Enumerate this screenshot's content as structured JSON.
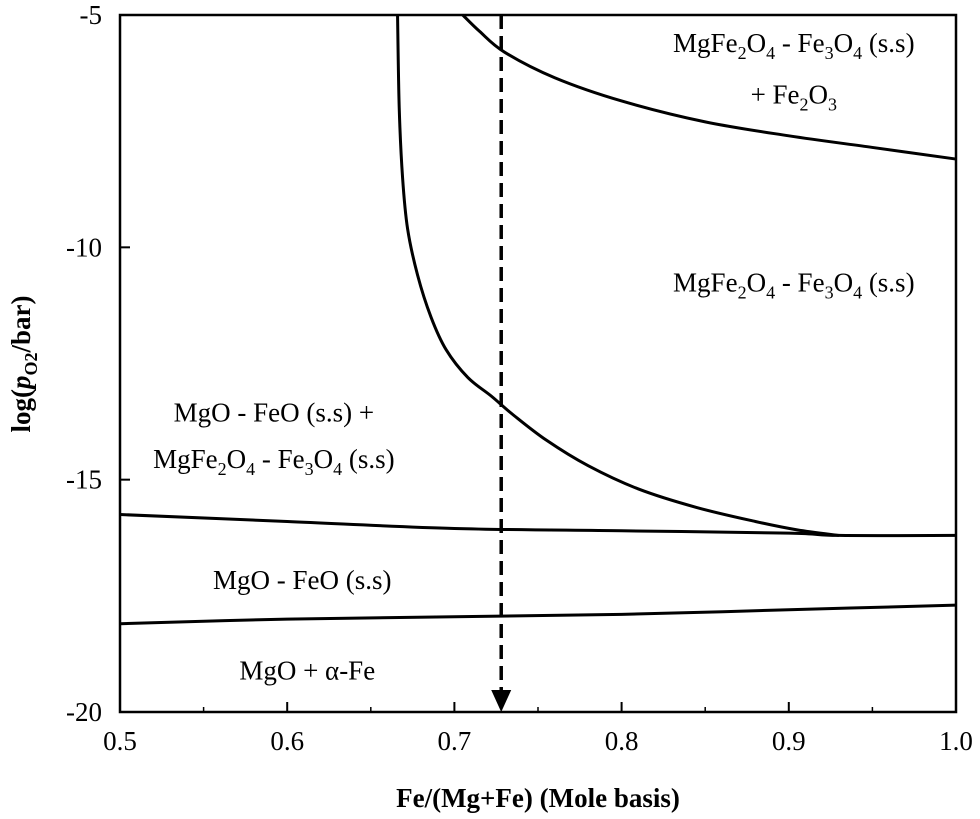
{
  "chart_data": {
    "type": "line",
    "title": "",
    "xlabel": "Fe/(Mg+Fe) (Mole basis)",
    "ylabel": {
      "prefix": "log(",
      "italic": "p",
      "subscript": "O2",
      "suffix": "/bar)"
    },
    "xlim": [
      0.5,
      1.0
    ],
    "ylim": [
      -20,
      -5
    ],
    "x_ticks": [
      0.5,
      0.6,
      0.7,
      0.8,
      0.9,
      1.0
    ],
    "x_tick_labels": [
      "0.5",
      "0.6",
      "0.7",
      "0.8",
      "0.9",
      "1.0"
    ],
    "y_ticks": [
      -20,
      -15,
      -10,
      -5
    ],
    "y_tick_labels": [
      "-20",
      "-15",
      "-10",
      "-5"
    ],
    "grid": false,
    "legend": "none",
    "series": [
      {
        "points": [
          [
            0.5,
            -18.1
          ],
          [
            0.6,
            -18.0
          ],
          [
            0.7,
            -17.95
          ],
          [
            0.8,
            -17.9
          ],
          [
            0.9,
            -17.8
          ],
          [
            1.0,
            -17.7
          ]
        ]
      },
      {
        "points": [
          [
            0.5,
            -15.75
          ],
          [
            0.6,
            -15.9
          ],
          [
            0.7,
            -16.05
          ],
          [
            0.8,
            -16.1
          ],
          [
            0.9,
            -16.15
          ],
          [
            0.93,
            -16.2
          ],
          [
            1.0,
            -16.2
          ]
        ]
      },
      {
        "points": [
          [
            0.666,
            -5.0
          ],
          [
            0.667,
            -7.0
          ],
          [
            0.669,
            -8.5
          ],
          [
            0.672,
            -9.6
          ],
          [
            0.678,
            -10.6
          ],
          [
            0.686,
            -11.5
          ],
          [
            0.695,
            -12.2
          ],
          [
            0.708,
            -12.8
          ],
          [
            0.722,
            -13.2
          ],
          [
            0.735,
            -13.6
          ],
          [
            0.755,
            -14.15
          ],
          [
            0.78,
            -14.7
          ],
          [
            0.81,
            -15.2
          ],
          [
            0.845,
            -15.6
          ],
          [
            0.88,
            -15.9
          ],
          [
            0.905,
            -16.08
          ],
          [
            0.93,
            -16.2
          ]
        ]
      },
      {
        "points": [
          [
            0.705,
            -5.0
          ],
          [
            0.715,
            -5.35
          ],
          [
            0.73,
            -5.8
          ],
          [
            0.76,
            -6.35
          ],
          [
            0.8,
            -6.85
          ],
          [
            0.85,
            -7.3
          ],
          [
            0.9,
            -7.6
          ],
          [
            0.95,
            -7.85
          ],
          [
            1.0,
            -8.1
          ]
        ]
      }
    ],
    "marker": {
      "x": 0.728,
      "y_from": -5,
      "y_to": -20,
      "style": "dashed-arrow"
    },
    "annotations": [
      {
        "id": "a1",
        "x": 0.903,
        "y": -5.8,
        "parts": [
          [
            "MgFe",
            ""
          ],
          [
            "2",
            "sub"
          ],
          [
            "O",
            ""
          ],
          [
            "4",
            "sub"
          ],
          [
            " - Fe",
            ""
          ],
          [
            "3",
            "sub"
          ],
          [
            "O",
            ""
          ],
          [
            "4",
            "sub"
          ],
          [
            " (s.s)",
            ""
          ]
        ]
      },
      {
        "id": "a2",
        "x": 0.903,
        "y": -6.9,
        "parts": [
          [
            "+ Fe",
            ""
          ],
          [
            "2",
            "sub"
          ],
          [
            "O",
            ""
          ],
          [
            "3",
            "sub"
          ]
        ]
      },
      {
        "id": "a3",
        "x": 0.903,
        "y": -10.95,
        "parts": [
          [
            "MgFe",
            ""
          ],
          [
            "2",
            "sub"
          ],
          [
            "O",
            ""
          ],
          [
            "4",
            "sub"
          ],
          [
            " - Fe",
            ""
          ],
          [
            "3",
            "sub"
          ],
          [
            "O",
            ""
          ],
          [
            "4",
            "sub"
          ],
          [
            " (s.s)",
            ""
          ]
        ]
      },
      {
        "id": "a4",
        "x": 0.592,
        "y": -13.75,
        "parts": [
          [
            "MgO - FeO (s.s) +",
            ""
          ]
        ]
      },
      {
        "id": "a5",
        "x": 0.592,
        "y": -14.75,
        "parts": [
          [
            "MgFe",
            ""
          ],
          [
            "2",
            "sub"
          ],
          [
            "O",
            ""
          ],
          [
            "4",
            "sub"
          ],
          [
            " - Fe",
            ""
          ],
          [
            "3",
            "sub"
          ],
          [
            "O",
            ""
          ],
          [
            "4",
            "sub"
          ],
          [
            " (s.s)",
            ""
          ]
        ]
      },
      {
        "id": "a6",
        "x": 0.609,
        "y": -17.35,
        "parts": [
          [
            "MgO - FeO (s.s)",
            ""
          ]
        ]
      },
      {
        "id": "a7",
        "x": 0.612,
        "y": -19.3,
        "parts": [
          [
            "MgO  + α-Fe",
            ""
          ]
        ]
      }
    ]
  }
}
